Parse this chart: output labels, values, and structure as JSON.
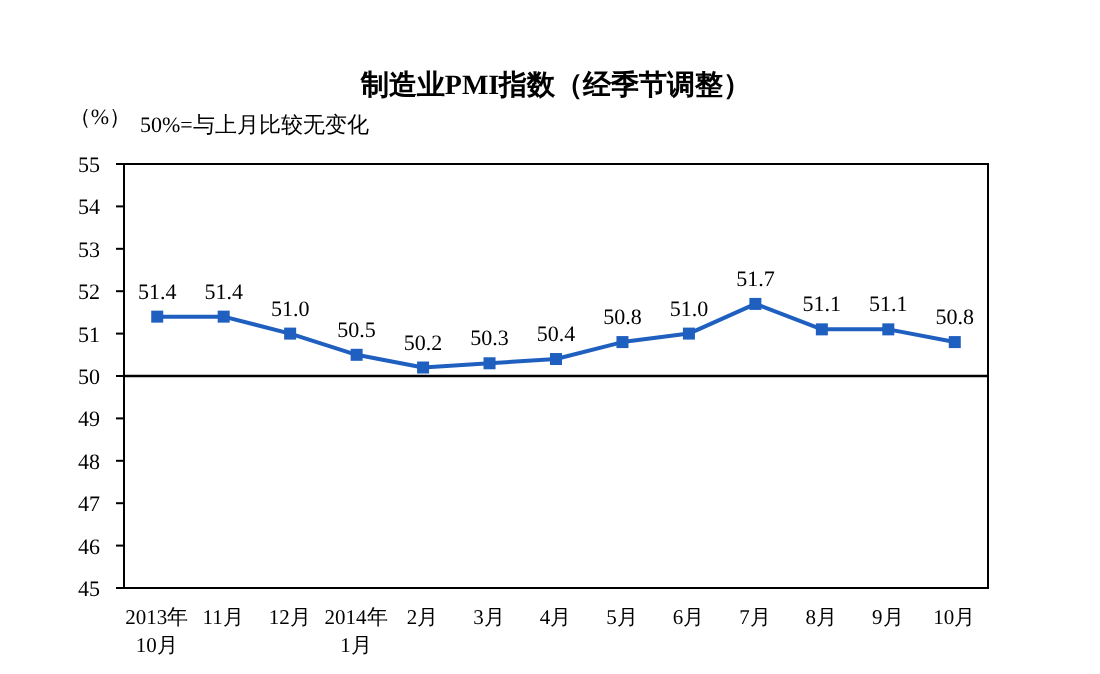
{
  "chart_data": {
    "type": "line",
    "title": "制造业PMI指数（经季节调整）",
    "ylabel": "（%）",
    "annotations": [
      "50%=与上月比较无变化"
    ],
    "categories": [
      "2013年\n10月",
      "11月",
      "12月",
      "2014年\n1月",
      "2月",
      "3月",
      "4月",
      "5月",
      "6月",
      "7月",
      "8月",
      "9月",
      "10月"
    ],
    "series": [
      {
        "color": "#1f5fbf",
        "values": [
          51.4,
          51.4,
          51.0,
          50.5,
          50.2,
          50.3,
          50.4,
          50.8,
          51.0,
          51.7,
          51.1,
          51.1,
          50.8
        ],
        "value_labels": [
          "51.4",
          "51.4",
          "51.0",
          "50.5",
          "50.2",
          "50.3",
          "50.4",
          "50.8",
          "51.0",
          "51.7",
          "51.1",
          "51.1",
          "50.8"
        ]
      }
    ],
    "ylim": [
      45,
      55
    ],
    "yticks": [
      45,
      46,
      47,
      48,
      49,
      50,
      51,
      52,
      53,
      54,
      55
    ],
    "ref_lines": [
      {
        "axis": "y",
        "value": 50,
        "color": "#000000"
      }
    ],
    "marker": "square"
  }
}
